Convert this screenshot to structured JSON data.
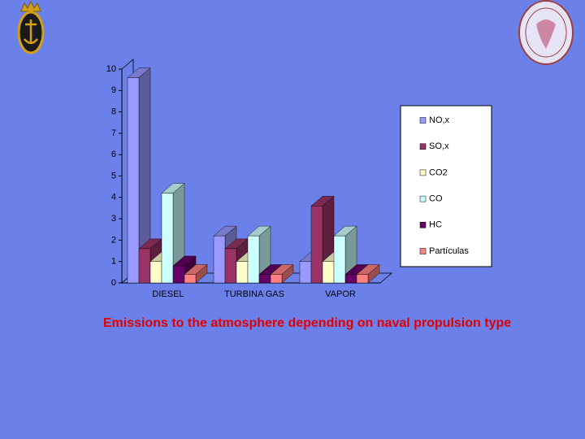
{
  "chart_data": {
    "type": "bar3d",
    "title": "Emissions to the atmosphere depending on naval  propulsion type",
    "categories": [
      "DIESEL",
      "TURBINA GAS",
      "VAPOR"
    ],
    "series": [
      {
        "name": "NO,x",
        "color": "#9999ff",
        "values": [
          9.6,
          2.2,
          1.0
        ]
      },
      {
        "name": "SO,x",
        "color": "#993366",
        "values": [
          1.6,
          1.6,
          3.6
        ]
      },
      {
        "name": "CO2",
        "color": "#ffffcc",
        "values": [
          1.0,
          1.0,
          1.0
        ]
      },
      {
        "name": "CO",
        "color": "#ccffff",
        "values": [
          4.2,
          2.2,
          2.2
        ]
      },
      {
        "name": "HC",
        "color": "#660066",
        "values": [
          0.8,
          0.4,
          0.4
        ]
      },
      {
        "name": "Partículas",
        "color": "#ff8080",
        "values": [
          0.4,
          0.4,
          0.4
        ]
      }
    ],
    "ylim": [
      0,
      10
    ],
    "yticks": [
      0,
      1,
      2,
      3,
      4,
      5,
      6,
      7,
      8,
      9,
      10
    ],
    "legend": "right"
  }
}
